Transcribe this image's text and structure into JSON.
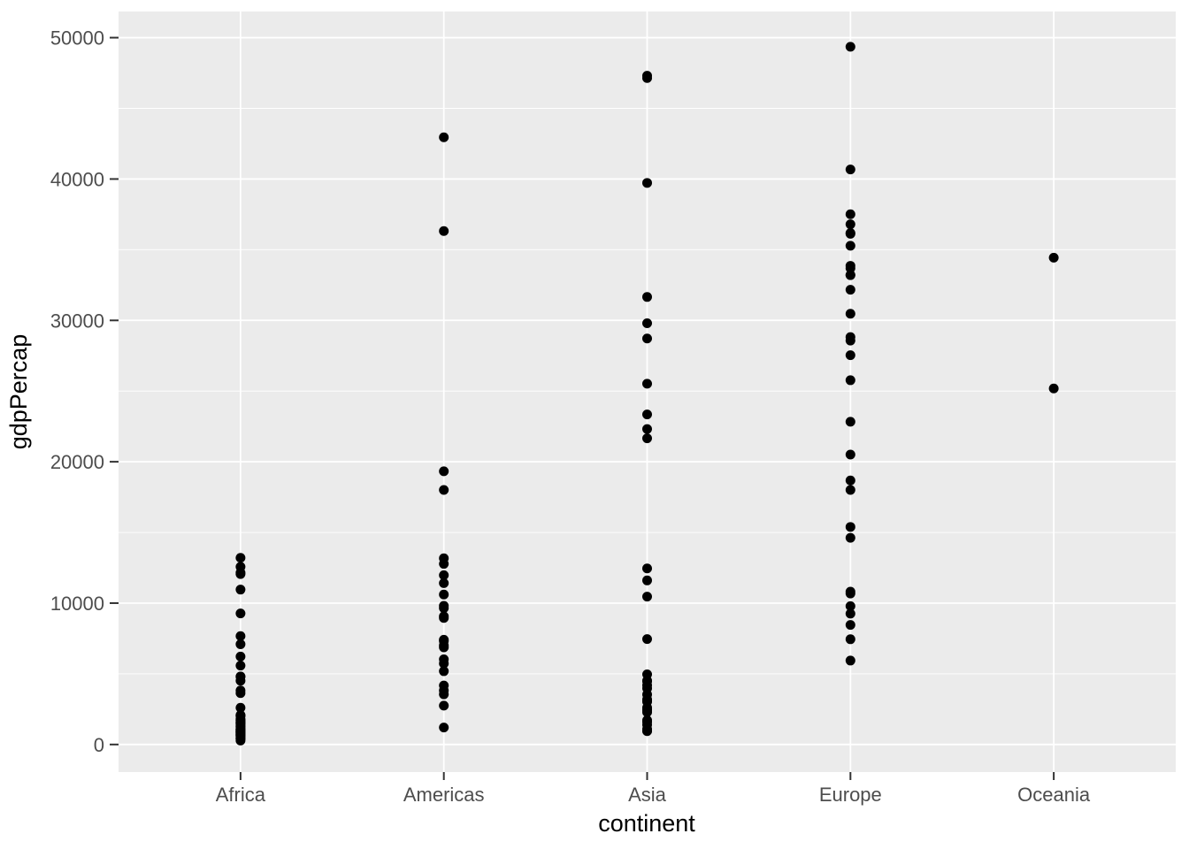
{
  "figure": {
    "background_color": "#FFFFFF",
    "panel_background_color": "#EBEBEB",
    "grid_color": "#FFFFFF",
    "point_color": "#000000",
    "axis_text_color": "#4D4D4D",
    "axis_title_color": "#000000",
    "tick_mark_color": "#333333"
  },
  "chart_data": {
    "type": "scatter",
    "title": "",
    "xlabel": "continent",
    "ylabel": "gdpPercap",
    "categories": [
      "Africa",
      "Americas",
      "Asia",
      "Europe",
      "Oceania"
    ],
    "y_ticks": [
      0,
      10000,
      20000,
      30000,
      40000,
      50000
    ],
    "y_tick_labels": [
      "0",
      "10000",
      "20000",
      "30000",
      "40000",
      "50000"
    ],
    "y_minor_ticks": [
      5000,
      15000,
      25000,
      35000,
      45000
    ],
    "ylim": [
      -1950,
      51850
    ],
    "grid": true,
    "legend_position": "none",
    "series": [
      {
        "name": "Africa",
        "values": [
          6223,
          4797,
          1441,
          12570,
          1217,
          430,
          2042,
          706,
          1704,
          986,
          278,
          3633,
          1545,
          2082,
          5581,
          12154,
          641,
          691,
          13206,
          753,
          1328,
          943,
          579,
          1463,
          1569,
          415,
          12057,
          1045,
          759,
          1043,
          1803,
          10957,
          3820,
          824,
          4811,
          620,
          2014,
          7670,
          863,
          1598,
          1712,
          863,
          926,
          9270,
          2602,
          4513,
          1107,
          883,
          7093,
          1056,
          1272,
          470
        ]
      },
      {
        "name": "Americas",
        "values": [
          12779,
          3822,
          9066,
          36319,
          13172,
          7007,
          9645,
          8948,
          6025,
          6873,
          5728,
          5186,
          1202,
          3548,
          7321,
          11978,
          2749,
          9809,
          4173,
          7409,
          19329,
          18009,
          42952,
          10611,
          11416
        ]
      },
      {
        "name": "Asia",
        "values": [
          975,
          29796,
          1391,
          1714,
          4959,
          39725,
          2452,
          3541,
          11606,
          4471,
          25523,
          31656,
          4519,
          1593,
          23348,
          47307,
          10461,
          12452,
          3096,
          944,
          1091,
          22316,
          2606,
          3190,
          21655,
          47143,
          3970,
          4185,
          28718,
          7458,
          2442,
          3025,
          2281
        ]
      },
      {
        "name": "Europe",
        "values": [
          5937,
          36126,
          33693,
          7446,
          10681,
          14619,
          22833,
          35278,
          33207,
          30470,
          32170,
          27538,
          18009,
          36181,
          40676,
          28570,
          9254,
          36798,
          49357,
          15390,
          20510,
          10808,
          9787,
          18678,
          25768,
          28821,
          33860,
          37506,
          8458,
          33203
        ]
      },
      {
        "name": "Oceania",
        "values": [
          34435,
          25185
        ]
      }
    ]
  }
}
